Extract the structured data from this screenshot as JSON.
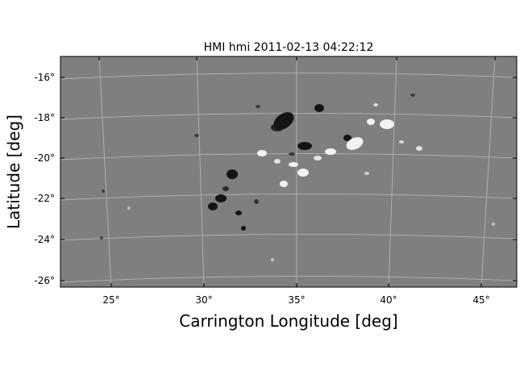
{
  "figure": {
    "title": "HMI hmi 2011-02-13 04:22:12",
    "xlabel": "Carrington Longitude [deg]",
    "ylabel": "Latitude [deg]"
  },
  "x_ticks": [
    "25°",
    "30°",
    "35°",
    "40°",
    "45°"
  ],
  "y_ticks": [
    "-16°",
    "-18°",
    "-20°",
    "-22°",
    "-24°",
    "-26°"
  ],
  "colors": {
    "background_field": "#7f7f7f",
    "grid_lines": "#b8b8b8",
    "negative_polarity": "#141414",
    "positive_polarity": "#f2f2f2"
  }
}
